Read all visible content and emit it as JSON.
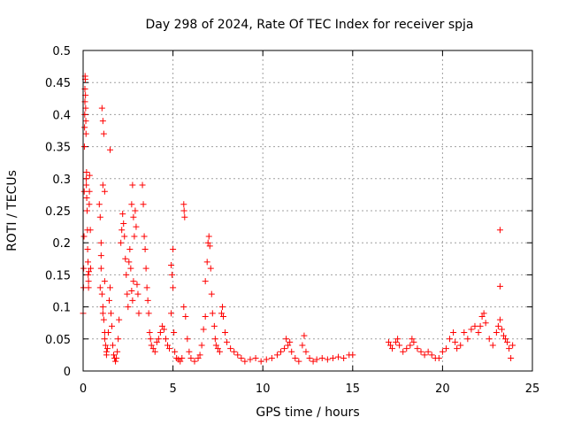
{
  "chart_data": {
    "type": "scatter",
    "title": "Day 298 of 2024, Rate Of TEC Index for receiver spja",
    "xlabel": "GPS time / hours",
    "ylabel": "ROTI / TECUs",
    "xlim": [
      0,
      25
    ],
    "ylim": [
      0,
      0.5
    ],
    "xticks": [
      0,
      5,
      10,
      15,
      20,
      25
    ],
    "yticks": [
      0,
      0.05,
      0.1,
      0.15,
      0.2,
      0.25,
      0.3,
      0.35,
      0.4,
      0.45,
      0.5
    ],
    "xtick_labels": [
      "0",
      "5",
      "10",
      "15",
      "20",
      "25"
    ],
    "ytick_labels": [
      "0",
      "0.05",
      "0.1",
      "0.15",
      "0.2",
      "0.25",
      "0.3",
      "0.35",
      "0.4",
      "0.45",
      "0.5"
    ],
    "grid": true,
    "marker": "plus",
    "color": "#ff0000",
    "series": [
      {
        "name": "ROTI",
        "points": [
          [
            0.0,
            0.09
          ],
          [
            0.02,
            0.13
          ],
          [
            0.03,
            0.16
          ],
          [
            0.05,
            0.21
          ],
          [
            0.06,
            0.28
          ],
          [
            0.07,
            0.35
          ],
          [
            0.08,
            0.38
          ],
          [
            0.09,
            0.4
          ],
          [
            0.1,
            0.42
          ],
          [
            0.1,
            0.44
          ],
          [
            0.11,
            0.46
          ],
          [
            0.12,
            0.455
          ],
          [
            0.13,
            0.43
          ],
          [
            0.14,
            0.41
          ],
          [
            0.15,
            0.39
          ],
          [
            0.16,
            0.37
          ],
          [
            0.17,
            0.3
          ],
          [
            0.18,
            0.29
          ],
          [
            0.19,
            0.31
          ],
          [
            0.2,
            0.27
          ],
          [
            0.22,
            0.25
          ],
          [
            0.24,
            0.22
          ],
          [
            0.25,
            0.19
          ],
          [
            0.27,
            0.17
          ],
          [
            0.28,
            0.15
          ],
          [
            0.3,
            0.14
          ],
          [
            0.3,
            0.13
          ],
          [
            0.32,
            0.155
          ],
          [
            0.34,
            0.26
          ],
          [
            0.35,
            0.28
          ],
          [
            0.36,
            0.305
          ],
          [
            0.4,
            0.22
          ],
          [
            0.42,
            0.16
          ],
          [
            0.9,
            0.26
          ],
          [
            0.95,
            0.24
          ],
          [
            1.0,
            0.2
          ],
          [
            1.0,
            0.18
          ],
          [
            0.95,
            0.13
          ],
          [
            1.05,
            0.12
          ],
          [
            1.1,
            0.1
          ],
          [
            1.1,
            0.09
          ],
          [
            1.15,
            0.08
          ],
          [
            1.2,
            0.06
          ],
          [
            1.2,
            0.05
          ],
          [
            1.25,
            0.04
          ],
          [
            1.3,
            0.03
          ],
          [
            1.3,
            0.025
          ],
          [
            1.35,
            0.035
          ],
          [
            1.4,
            0.06
          ],
          [
            1.45,
            0.11
          ],
          [
            1.5,
            0.13
          ],
          [
            1.55,
            0.09
          ],
          [
            1.6,
            0.07
          ],
          [
            1.65,
            0.04
          ],
          [
            1.7,
            0.025
          ],
          [
            1.75,
            0.02
          ],
          [
            1.8,
            0.015
          ],
          [
            1.85,
            0.02
          ],
          [
            1.9,
            0.03
          ],
          [
            1.95,
            0.05
          ],
          [
            2.0,
            0.08
          ],
          [
            1.05,
            0.41
          ],
          [
            1.1,
            0.39
          ],
          [
            1.15,
            0.37
          ],
          [
            1.5,
            0.345
          ],
          [
            1.1,
            0.29
          ],
          [
            1.2,
            0.28
          ],
          [
            1.0,
            0.16
          ],
          [
            1.2,
            0.14
          ],
          [
            2.1,
            0.2
          ],
          [
            2.15,
            0.22
          ],
          [
            2.2,
            0.245
          ],
          [
            2.25,
            0.23
          ],
          [
            2.3,
            0.21
          ],
          [
            2.35,
            0.175
          ],
          [
            2.4,
            0.15
          ],
          [
            2.45,
            0.12
          ],
          [
            2.5,
            0.1
          ],
          [
            2.55,
            0.17
          ],
          [
            2.6,
            0.19
          ],
          [
            2.65,
            0.16
          ],
          [
            2.7,
            0.26
          ],
          [
            2.75,
            0.29
          ],
          [
            2.8,
            0.24
          ],
          [
            2.85,
            0.21
          ],
          [
            2.9,
            0.25
          ],
          [
            2.95,
            0.225
          ],
          [
            2.7,
            0.125
          ],
          [
            2.75,
            0.11
          ],
          [
            2.8,
            0.14
          ],
          [
            3.0,
            0.135
          ],
          [
            3.05,
            0.12
          ],
          [
            3.1,
            0.09
          ],
          [
            3.3,
            0.29
          ],
          [
            3.35,
            0.26
          ],
          [
            3.4,
            0.21
          ],
          [
            3.45,
            0.19
          ],
          [
            3.5,
            0.16
          ],
          [
            3.55,
            0.13
          ],
          [
            3.6,
            0.11
          ],
          [
            3.65,
            0.09
          ],
          [
            3.7,
            0.06
          ],
          [
            3.75,
            0.05
          ],
          [
            3.8,
            0.04
          ],
          [
            3.9,
            0.035
          ],
          [
            4.0,
            0.03
          ],
          [
            4.1,
            0.045
          ],
          [
            4.2,
            0.05
          ],
          [
            4.3,
            0.06
          ],
          [
            4.4,
            0.07
          ],
          [
            4.5,
            0.065
          ],
          [
            4.6,
            0.05
          ],
          [
            4.7,
            0.04
          ],
          [
            4.8,
            0.035
          ],
          [
            4.9,
            0.09
          ],
          [
            4.95,
            0.15
          ],
          [
            5.0,
            0.19
          ],
          [
            4.9,
            0.165
          ],
          [
            5.0,
            0.13
          ],
          [
            5.05,
            0.06
          ],
          [
            5.1,
            0.03
          ],
          [
            5.2,
            0.02
          ],
          [
            5.3,
            0.018
          ],
          [
            5.4,
            0.015
          ],
          [
            5.5,
            0.02
          ],
          [
            5.6,
            0.26
          ],
          [
            5.62,
            0.25
          ],
          [
            5.65,
            0.24
          ],
          [
            5.6,
            0.1
          ],
          [
            5.7,
            0.085
          ],
          [
            5.8,
            0.05
          ],
          [
            5.9,
            0.03
          ],
          [
            6.0,
            0.02
          ],
          [
            6.2,
            0.015
          ],
          [
            6.4,
            0.02
          ],
          [
            6.5,
            0.025
          ],
          [
            6.6,
            0.04
          ],
          [
            6.7,
            0.065
          ],
          [
            6.8,
            0.085
          ],
          [
            6.8,
            0.14
          ],
          [
            6.9,
            0.17
          ],
          [
            6.95,
            0.2
          ],
          [
            7.0,
            0.21
          ],
          [
            7.05,
            0.195
          ],
          [
            7.1,
            0.16
          ],
          [
            7.15,
            0.12
          ],
          [
            7.2,
            0.09
          ],
          [
            7.3,
            0.07
          ],
          [
            7.35,
            0.05
          ],
          [
            7.4,
            0.04
          ],
          [
            7.5,
            0.035
          ],
          [
            7.6,
            0.03
          ],
          [
            7.7,
            0.09
          ],
          [
            7.75,
            0.1
          ],
          [
            7.8,
            0.085
          ],
          [
            7.9,
            0.06
          ],
          [
            8.0,
            0.045
          ],
          [
            8.2,
            0.035
          ],
          [
            8.4,
            0.03
          ],
          [
            8.6,
            0.025
          ],
          [
            8.8,
            0.02
          ],
          [
            9.0,
            0.015
          ],
          [
            9.3,
            0.018
          ],
          [
            9.6,
            0.02
          ],
          [
            9.9,
            0.015
          ],
          [
            10.2,
            0.018
          ],
          [
            10.5,
            0.02
          ],
          [
            10.8,
            0.025
          ],
          [
            11.0,
            0.03
          ],
          [
            11.2,
            0.035
          ],
          [
            11.4,
            0.04
          ],
          [
            11.5,
            0.045
          ],
          [
            11.3,
            0.05
          ],
          [
            11.6,
            0.03
          ],
          [
            11.8,
            0.02
          ],
          [
            12.0,
            0.015
          ],
          [
            12.2,
            0.04
          ],
          [
            12.3,
            0.055
          ],
          [
            12.4,
            0.03
          ],
          [
            12.6,
            0.02
          ],
          [
            12.8,
            0.015
          ],
          [
            13.0,
            0.018
          ],
          [
            13.3,
            0.02
          ],
          [
            13.6,
            0.018
          ],
          [
            13.9,
            0.02
          ],
          [
            14.2,
            0.022
          ],
          [
            14.5,
            0.02
          ],
          [
            14.8,
            0.025
          ],
          [
            15.0,
            0.025
          ],
          [
            17.0,
            0.045
          ],
          [
            17.1,
            0.04
          ],
          [
            17.2,
            0.035
          ],
          [
            17.4,
            0.045
          ],
          [
            17.5,
            0.05
          ],
          [
            17.6,
            0.04
          ],
          [
            17.8,
            0.03
          ],
          [
            18.0,
            0.035
          ],
          [
            18.2,
            0.04
          ],
          [
            18.3,
            0.05
          ],
          [
            18.4,
            0.045
          ],
          [
            18.6,
            0.035
          ],
          [
            18.8,
            0.03
          ],
          [
            19.0,
            0.025
          ],
          [
            19.2,
            0.03
          ],
          [
            19.4,
            0.025
          ],
          [
            19.6,
            0.02
          ],
          [
            19.8,
            0.02
          ],
          [
            20.0,
            0.03
          ],
          [
            20.2,
            0.035
          ],
          [
            20.4,
            0.05
          ],
          [
            20.6,
            0.06
          ],
          [
            20.7,
            0.045
          ],
          [
            20.8,
            0.035
          ],
          [
            21.0,
            0.04
          ],
          [
            21.2,
            0.06
          ],
          [
            21.4,
            0.05
          ],
          [
            21.6,
            0.065
          ],
          [
            21.8,
            0.07
          ],
          [
            22.0,
            0.06
          ],
          [
            22.1,
            0.07
          ],
          [
            22.2,
            0.085
          ],
          [
            22.3,
            0.09
          ],
          [
            22.4,
            0.075
          ],
          [
            22.6,
            0.05
          ],
          [
            22.8,
            0.04
          ],
          [
            23.0,
            0.06
          ],
          [
            23.1,
            0.07
          ],
          [
            23.2,
            0.08
          ],
          [
            23.3,
            0.065
          ],
          [
            23.4,
            0.055
          ],
          [
            23.5,
            0.05
          ],
          [
            23.6,
            0.045
          ],
          [
            23.7,
            0.035
          ],
          [
            23.8,
            0.02
          ],
          [
            23.9,
            0.04
          ],
          [
            23.2,
            0.22
          ],
          [
            23.2,
            0.132
          ]
        ]
      }
    ]
  }
}
